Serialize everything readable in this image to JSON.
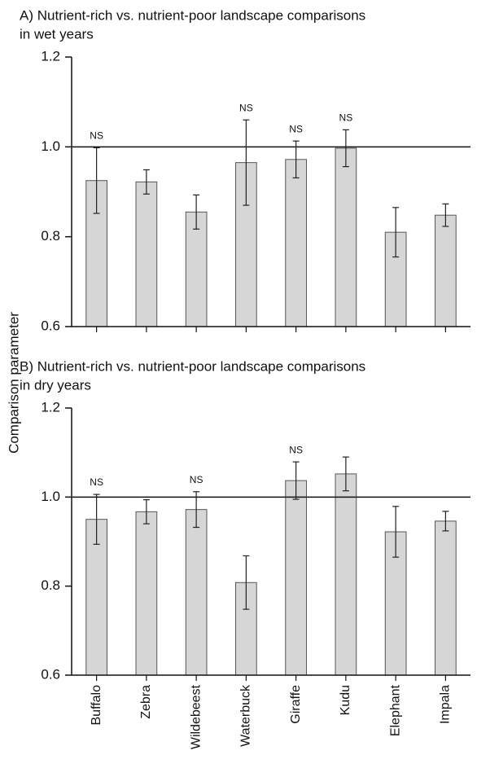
{
  "chart_data": [
    {
      "type": "bar",
      "title": [
        "A) Nutrient-rich vs. nutrient-poor landscape comparisons",
        "in wet years"
      ],
      "ylabel": "Comparison parameter",
      "values": [
        0.925,
        0.922,
        0.855,
        0.965,
        0.972,
        0.997,
        0.81,
        0.848
      ],
      "errors": [
        0.073,
        0.027,
        0.038,
        0.095,
        0.041,
        0.041,
        0.055,
        0.025
      ],
      "annotations": [
        "NS",
        null,
        null,
        "NS",
        "NS",
        "NS",
        null,
        null
      ],
      "color": "#d6d6d6",
      "hline": 1.0,
      "ylim": [
        0.6,
        1.2
      ],
      "yticks": [
        0.6,
        0.8,
        {
          "value": 1.0,
          "label": "1.0"
        },
        1.2
      ]
    },
    {
      "type": "bar",
      "title": [
        "B) Nutrient-rich vs. nutrient-poor landscape comparisons",
        "in dry years"
      ],
      "categories": [
        "Buffalo",
        "Zebra",
        "Wildebeest",
        "Waterbuck",
        "Giraffe",
        "Kudu",
        "Elephant",
        "Impala"
      ],
      "values": [
        0.95,
        0.967,
        0.972,
        0.808,
        1.037,
        1.052,
        0.922,
        0.946
      ],
      "errors": [
        0.056,
        0.027,
        0.04,
        0.06,
        0.042,
        0.038,
        0.057,
        0.022
      ],
      "annotations": [
        "NS",
        null,
        "NS",
        null,
        "NS",
        null,
        null,
        null
      ],
      "color": "#d6d6d6",
      "hline": 1.0,
      "ylim": [
        0.6,
        1.2
      ],
      "yticks": [
        0.6,
        0.8,
        {
          "value": 1.0,
          "label": "1.0"
        },
        1.2
      ]
    }
  ]
}
